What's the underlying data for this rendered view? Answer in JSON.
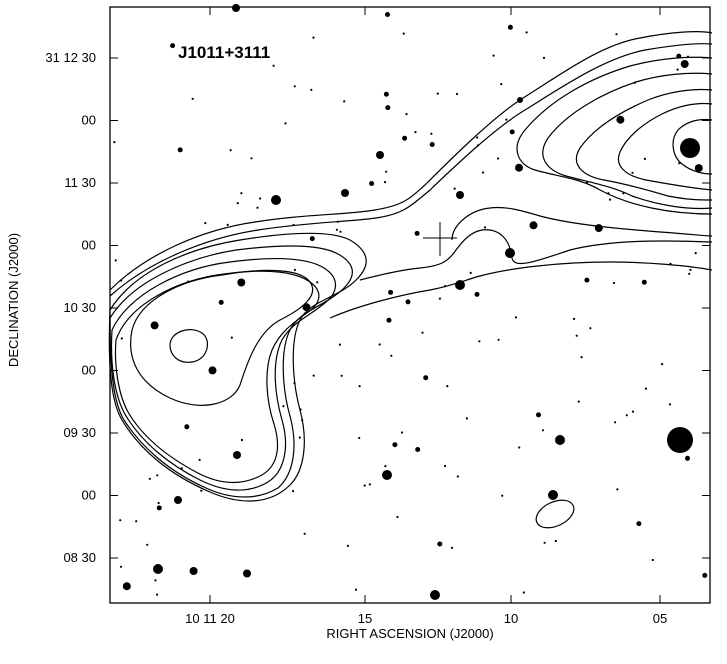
{
  "chart_data": {
    "type": "contour",
    "title": "J1011+3111",
    "xlabel": "RIGHT ASCENSION (J2000)",
    "ylabel": "DECLINATION (J2000)",
    "x_ticks": [
      "10 11 20",
      "15",
      "10",
      "05"
    ],
    "y_ticks": [
      "31 12 30",
      "00",
      "11 30",
      "00",
      "10 30",
      "00",
      "09 30",
      "00",
      "08 30"
    ],
    "xlim": [
      "10 11 25.5",
      "10 11 02.0"
    ],
    "ylim": [
      "31 08 10",
      "31 12 50"
    ],
    "components": [
      {
        "name": "southern lobe",
        "peak_ra": "10 11 21.5",
        "peak_dec": "31 10 04"
      },
      {
        "name": "northern lobe",
        "peak_ra": "10 11 02.5",
        "peak_dec": "31 11 47"
      },
      {
        "name": "core position (cross)",
        "ra": "10 11 11.8",
        "dec": "31 11 03"
      }
    ],
    "beam": {
      "ra": "10 11 07.5",
      "dec": "31 08 45"
    },
    "contour_levels_count": 7,
    "grid": false,
    "legend": "none"
  }
}
